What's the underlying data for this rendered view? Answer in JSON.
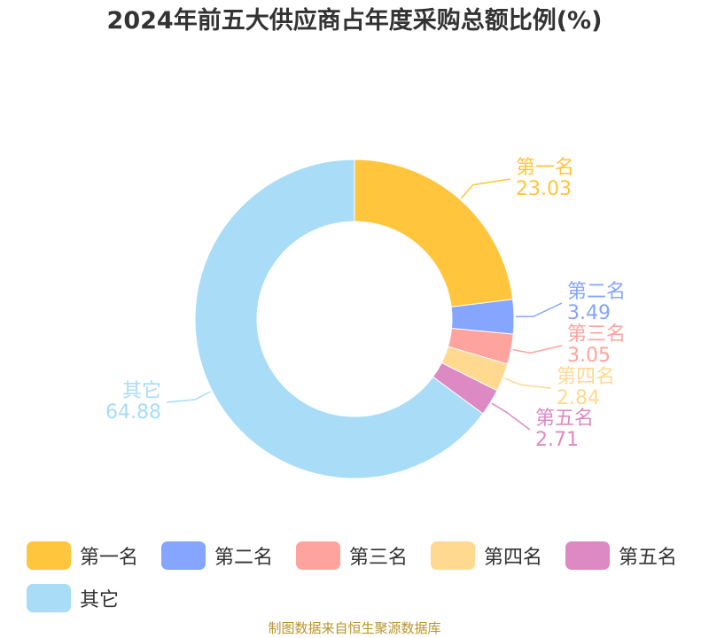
{
  "title": "2024年前五大供应商占年度采购总额比例(%)",
  "source": "制图数据来自恒生聚源数据库",
  "chart_data": {
    "type": "pie",
    "style": "donut",
    "title": "2024年前五大供应商占年度采购总额比例(%)",
    "slices": [
      {
        "name": "第一名",
        "value": 23.03,
        "value_label": "23.03",
        "color": "#ffc53d"
      },
      {
        "name": "第二名",
        "value": 3.49,
        "value_label": "3.49",
        "color": "#85a5ff"
      },
      {
        "name": "第三名",
        "value": 3.05,
        "value_label": "3.05",
        "color": "#ffa39e"
      },
      {
        "name": "第四名",
        "value": 2.84,
        "value_label": "2.84",
        "color": "#ffd98f"
      },
      {
        "name": "第五名",
        "value": 2.71,
        "value_label": "2.71",
        "color": "#dc89c4"
      },
      {
        "name": "其它",
        "value": 64.88,
        "value_label": "64.88",
        "color": "#a8dcf7"
      }
    ],
    "legend_position": "bottom"
  }
}
